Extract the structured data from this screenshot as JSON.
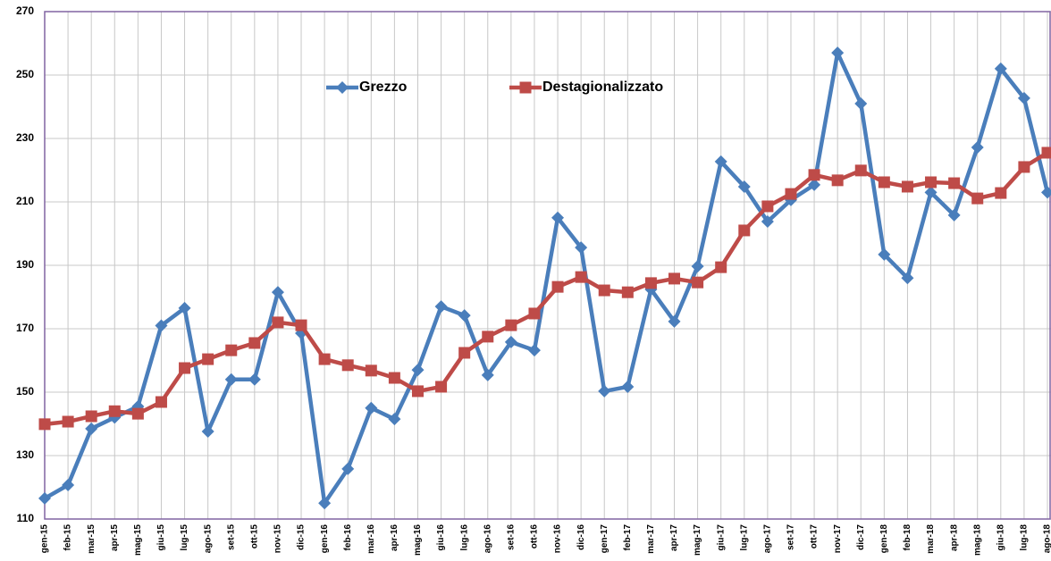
{
  "chart_data": {
    "type": "line",
    "categories": [
      "gen-15",
      "feb-15",
      "mar-15",
      "apr-15",
      "mag-15",
      "giu-15",
      "lug-15",
      "ago-15",
      "set-15",
      "ott-15",
      "nov-15",
      "dic-15",
      "gen-16",
      "feb-16",
      "mar-16",
      "apr-16",
      "mag-16",
      "giu-16",
      "lug-16",
      "ago-16",
      "set-16",
      "ott-16",
      "nov-16",
      "dic-16",
      "gen-17",
      "feb-17",
      "mar-17",
      "apr-17",
      "mag-17",
      "giu-17",
      "lug-17",
      "ago-17",
      "set-17",
      "ott-17",
      "nov-17",
      "dic-17",
      "gen-18",
      "feb-18",
      "mar-18",
      "apr-18",
      "mag-18",
      "giu-18",
      "lug-18",
      "ago-18"
    ],
    "series": [
      {
        "name": "Grezzo",
        "color": "#4a7ebb",
        "marker": "diamond",
        "values": [
          116.5,
          120.7,
          138.5,
          142,
          145.5,
          171,
          176.5,
          137.6,
          154,
          154,
          181.5,
          168.6,
          115,
          125.8,
          145,
          141.5,
          157,
          177,
          174.2,
          155.4,
          165.8,
          163.2,
          205,
          195.6,
          150.3,
          151.7,
          182.4,
          172.3,
          189.7,
          222.7,
          214.8,
          203.8,
          210.6,
          215.4,
          257,
          241,
          193.4,
          186,
          213,
          205.8,
          227.2,
          252,
          242.7,
          213
        ]
      },
      {
        "name": "Destagionalizzato",
        "color": "#be4b48",
        "marker": "square",
        "values": [
          139.9,
          140.7,
          142.4,
          144,
          143.2,
          146.9,
          157.6,
          160.4,
          163.2,
          165.5,
          172,
          171.1,
          160.4,
          158.5,
          156.8,
          154.5,
          150.3,
          151.7,
          162.4,
          167.5,
          171.1,
          174.8,
          183.2,
          186.3,
          182.1,
          181.5,
          184.4,
          185.8,
          184.6,
          189.4,
          201,
          208.6,
          212.5,
          218.5,
          216.8,
          219.9,
          216.2,
          214.8,
          216.2,
          215.9,
          211.1,
          212.8,
          221,
          225.5
        ]
      }
    ],
    "ylim": [
      110,
      270
    ],
    "yticks": [
      110,
      130,
      150,
      170,
      190,
      210,
      230,
      250,
      270
    ],
    "grid": true,
    "legend_position": "top"
  }
}
